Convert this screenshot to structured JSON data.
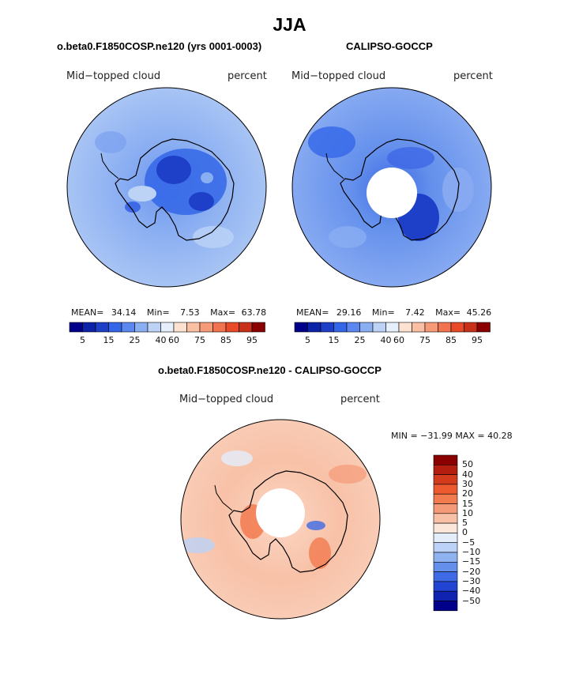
{
  "main_title": "JJA",
  "panels": {
    "model": {
      "title": "o.beta0.F1850COSP.ne120 (yrs 0001-0003)",
      "variable": "Mid−topped cloud",
      "units": "percent",
      "stats": {
        "mean_label": "MEAN=",
        "mean": "34.14",
        "min_label": "Min=",
        "min": "7.53",
        "max_label": "Max=",
        "max": "63.78"
      }
    },
    "obs": {
      "title": "CALIPSO-GOCCP",
      "variable": "Mid−topped cloud",
      "units": "percent",
      "stats": {
        "mean_label": "MEAN=",
        "mean": "29.16",
        "min_label": "Min=",
        "min": "7.42",
        "max_label": "Max=",
        "max": "45.26"
      }
    },
    "diff": {
      "title": "o.beta0.F1850COSP.ne120 - CALIPSO-GOCCP",
      "variable": "Mid−topped cloud",
      "units": "percent",
      "minmax": "MIN = −31.99 MAX =  40.28"
    }
  },
  "colorbar_abs": {
    "colors": [
      "#00008b",
      "#0a23a8",
      "#1e3fc8",
      "#3366e8",
      "#5a88f0",
      "#8aaef2",
      "#bcd3f6",
      "#e6f0fc",
      "#fde2d2",
      "#fbbfa3",
      "#f79a78",
      "#f2734f",
      "#e84a28",
      "#c9301a",
      "#8b0000"
    ],
    "tick_labels": [
      "5",
      "15",
      "25",
      "40",
      "60",
      "75",
      "85",
      "95"
    ]
  },
  "colorbar_diff": {
    "colors": [
      "#8b0000",
      "#b31e0f",
      "#d43a1c",
      "#ee5a30",
      "#f27a4f",
      "#f59a78",
      "#f8c1a7",
      "#fce6da",
      "#e4eefb",
      "#bcd2f7",
      "#8fb2f1",
      "#6490ec",
      "#3f6ae6",
      "#2244d2",
      "#0f22b0",
      "#00008b"
    ],
    "tick_labels": [
      "50",
      "40",
      "30",
      "20",
      "15",
      "10",
      "5",
      "0",
      "−5",
      "−10",
      "−15",
      "−20",
      "−30",
      "−40",
      "−50"
    ]
  },
  "chart_data": [
    {
      "type": "heatmap",
      "projection": "south-polar-stereographic",
      "title": "o.beta0.F1850COSP.ne120 (yrs 0001-0003)",
      "variable": "Mid-topped cloud",
      "units": "percent",
      "contour_levels": [
        5,
        10,
        15,
        20,
        25,
        30,
        40,
        50,
        60,
        65,
        75,
        80,
        85,
        90,
        95
      ],
      "mean": 34.14,
      "min": 7.53,
      "max": 63.78
    },
    {
      "type": "heatmap",
      "projection": "south-polar-stereographic",
      "title": "CALIPSO-GOCCP",
      "variable": "Mid-topped cloud",
      "units": "percent",
      "contour_levels": [
        5,
        10,
        15,
        20,
        25,
        30,
        40,
        50,
        60,
        65,
        75,
        80,
        85,
        90,
        95
      ],
      "mean": 29.16,
      "min": 7.42,
      "max": 45.26
    },
    {
      "type": "heatmap",
      "projection": "south-polar-stereographic",
      "title": "o.beta0.F1850COSP.ne120 - CALIPSO-GOCCP",
      "variable": "Mid-topped cloud",
      "units": "percent",
      "contour_levels": [
        -50,
        -40,
        -30,
        -20,
        -15,
        -10,
        -5,
        0,
        5,
        10,
        15,
        20,
        30,
        40,
        50
      ],
      "min": -31.99,
      "max": 40.28
    }
  ]
}
